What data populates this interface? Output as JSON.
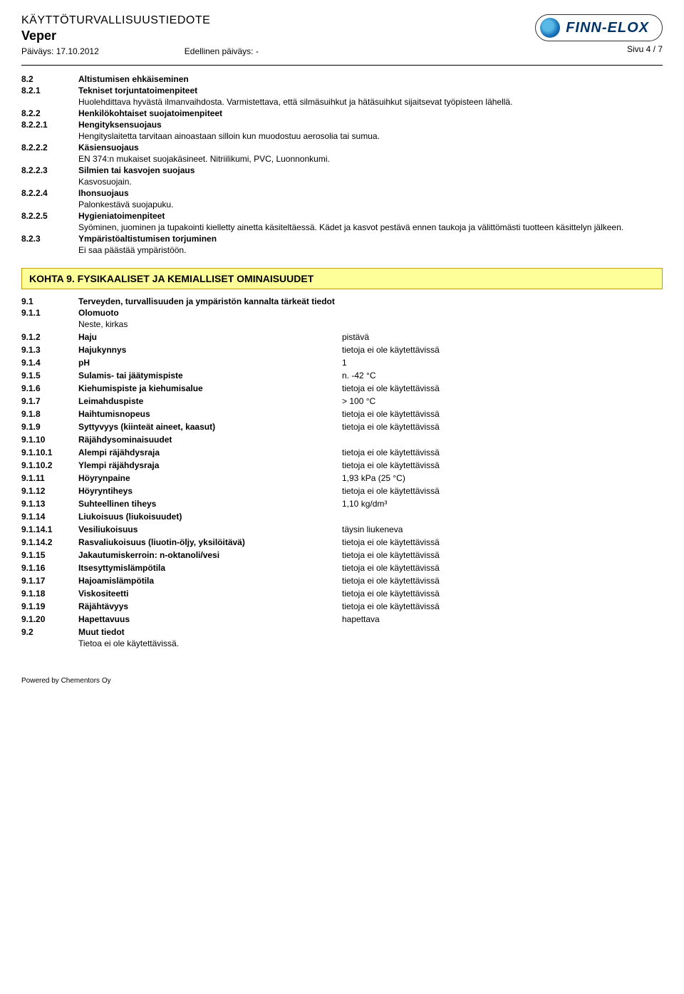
{
  "header": {
    "doc_title": "KÄYTTÖTURVALLISUUSTIEDOTE",
    "product": "Veper",
    "date_label": "Päiväys:",
    "date": "17.10.2012",
    "prev_label": "Edellinen päiväys:",
    "prev": "-",
    "page": "Sivu  4 / 7",
    "logo_text": "FINN-ELOX"
  },
  "sec8": {
    "s82": {
      "num": "8.2",
      "label": "Altistumisen ehkäiseminen"
    },
    "s821": {
      "num": "8.2.1",
      "label": "Tekniset torjuntatoimenpiteet",
      "text": "Huolehdittava hyvästä ilmanvaihdosta. Varmistettava, että silmäsuihkut ja hätäsuihkut sijaitsevat työpisteen lähellä."
    },
    "s822": {
      "num": "8.2.2",
      "label": "Henkilökohtaiset suojatoimenpiteet"
    },
    "s8221": {
      "num": "8.2.2.1",
      "label": "Hengityksensuojaus",
      "text": "Hengityslaitetta tarvitaan ainoastaan silloin kun muodostuu aerosolia tai sumua."
    },
    "s8222": {
      "num": "8.2.2.2",
      "label": "Käsiensuojaus",
      "text": "EN 374:n mukaiset suojakäsineet. Nitriilikumi, PVC, Luonnonkumi."
    },
    "s8223": {
      "num": "8.2.2.3",
      "label": "Silmien tai kasvojen suojaus",
      "text": "Kasvosuojain."
    },
    "s8224": {
      "num": "8.2.2.4",
      "label": "Ihonsuojaus",
      "text": "Palonkestävä suojapuku."
    },
    "s8225": {
      "num": "8.2.2.5",
      "label": "Hygieniatoimenpiteet",
      "text": "Syöminen, juominen ja tupakointi kielletty ainetta käsiteltäessä. Kädet ja kasvot pestävä ennen taukoja ja välittömästi tuotteen käsittelyn jälkeen."
    },
    "s823": {
      "num": "8.2.3",
      "label": "Ympäristöaltistumisen torjuminen",
      "text": "Ei saa päästää ympäristöön."
    }
  },
  "sec9": {
    "title": "KOHTA 9. FYSIKAALISET JA KEMIALLISET OMINAISUUDET",
    "s91": {
      "num": "9.1",
      "label": "Terveyden, turvallisuuden ja ympäristön kannalta tärkeät tiedot"
    },
    "s911": {
      "num": "9.1.1",
      "label": "Olomuoto",
      "text": "Neste, kirkas"
    },
    "props": [
      {
        "num": "9.1.2",
        "label": "Haju",
        "val": "pistävä"
      },
      {
        "num": "9.1.3",
        "label": "Hajukynnys",
        "val": "tietoja ei ole käytettävissä"
      },
      {
        "num": "9.1.4",
        "label": "pH",
        "val": "1"
      },
      {
        "num": "9.1.5",
        "label": "Sulamis- tai jäätymispiste",
        "val": "n. -42 °C"
      },
      {
        "num": "9.1.6",
        "label": "Kiehumispiste ja kiehumisalue",
        "val": "tietoja ei ole käytettävissä"
      },
      {
        "num": "9.1.7",
        "label": "Leimahduspiste",
        "val": "> 100 °C"
      },
      {
        "num": "9.1.8",
        "label": "Haihtumisnopeus",
        "val": "tietoja ei ole käytettävissä"
      },
      {
        "num": "9.1.9",
        "label": "Syttyvyys (kiinteät aineet, kaasut)",
        "val": "tietoja ei ole käytettävissä"
      }
    ],
    "s9110": {
      "num": "9.1.10",
      "label": "Räjähdysominaisuudet"
    },
    "props2": [
      {
        "num": "9.1.10.1",
        "label": "Alempi räjähdysraja",
        "val": "tietoja ei ole käytettävissä"
      },
      {
        "num": "9.1.10.2",
        "label": "Ylempi räjähdysraja",
        "val": "tietoja ei ole käytettävissä"
      },
      {
        "num": "9.1.11",
        "label": "Höyrynpaine",
        "val": "1,93 kPa (25 °C)"
      },
      {
        "num": "9.1.12",
        "label": "Höyryntiheys",
        "val": "tietoja ei ole käytettävissä"
      },
      {
        "num": "9.1.13",
        "label": "Suhteellinen tiheys",
        "val": "1,10 kg/dm³"
      }
    ],
    "s9114": {
      "num": "9.1.14",
      "label": "Liukoisuus (liukoisuudet)"
    },
    "props3": [
      {
        "num": "9.1.14.1",
        "label": "Vesiliukoisuus",
        "val": "täysin liukeneva"
      },
      {
        "num": "9.1.14.2",
        "label": "Rasvaliukoisuus (liuotin-öljy, yksilöitävä)",
        "val": "tietoja ei ole käytettävissä"
      },
      {
        "num": "9.1.15",
        "label": "Jakautumiskerroin: n-oktanoli/vesi",
        "val": "tietoja ei ole käytettävissä"
      },
      {
        "num": "9.1.16",
        "label": "Itsesyttymislämpötila",
        "val": "tietoja ei ole käytettävissä"
      },
      {
        "num": "9.1.17",
        "label": "Hajoamislämpötila",
        "val": "tietoja ei ole käytettävissä"
      },
      {
        "num": "9.1.18",
        "label": "Viskositeetti",
        "val": "tietoja ei ole käytettävissä"
      },
      {
        "num": "9.1.19",
        "label": "Räjähtävyys",
        "val": "tietoja ei ole käytettävissä"
      },
      {
        "num": "9.1.20",
        "label": "Hapettavuus",
        "val": "hapettava"
      }
    ],
    "s92": {
      "num": "9.2",
      "label": "Muut tiedot",
      "text": "Tietoa ei ole käytettävissä."
    }
  },
  "footer": "Powered by Chementors Oy"
}
